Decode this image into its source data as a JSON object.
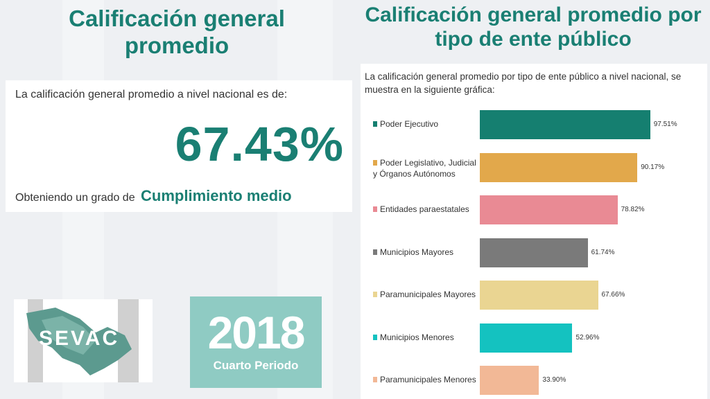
{
  "left_title": "Calificación general promedio",
  "right_title": "Calificación general promedio por tipo de ente público",
  "kpi": {
    "intro": "La calificación general promedio a nivel nacional es de:",
    "value": "67.43%",
    "grade_prefix": "Obteniendo un grado de",
    "grade": "Cumplimiento medio"
  },
  "logos": {
    "sevac": "SEVAC",
    "year": "2018",
    "period": "Cuarto Periodo"
  },
  "chart_description": "La calificación general promedio por tipo de ente público a nivel nacional, se muestra en la siguiente gráfica:",
  "chart_data": {
    "type": "bar",
    "orientation": "horizontal",
    "categories": [
      "Poder Ejecutivo",
      "Poder Legislativo, Judicial y Órganos Autónomos",
      "Entidades paraestatales",
      "Municipios Mayores",
      "Paramunicipales Mayores",
      "Municipios Menores",
      "Paramunicipales Menores"
    ],
    "values": [
      97.51,
      90.17,
      78.82,
      61.74,
      67.66,
      52.96,
      33.9
    ],
    "value_labels": [
      "97.51%",
      "90.17%",
      "78.82%",
      "61.74%",
      "67.66%",
      "52.96%",
      "33.90%"
    ],
    "colors": [
      "#157f70",
      "#e2a84b",
      "#e98a94",
      "#7a7a7a",
      "#ead592",
      "#14c2c0",
      "#f2b896"
    ],
    "xlim": [
      0,
      100
    ],
    "title": "",
    "xlabel": "",
    "ylabel": ""
  }
}
